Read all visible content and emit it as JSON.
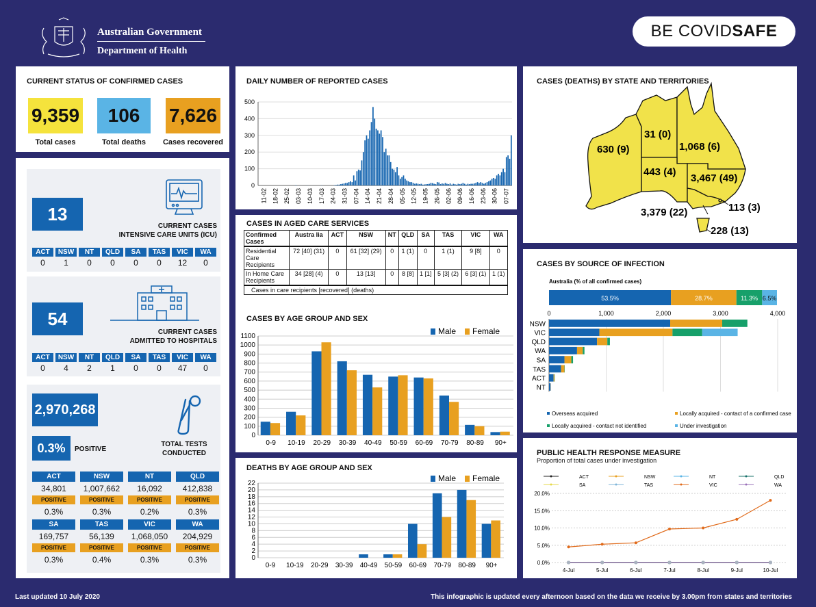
{
  "header": {
    "gov_line1": "Australian Government",
    "gov_line2": "Department of Health",
    "brand": "BE COVIDSAFE",
    "brand_a": "BE COVID",
    "brand_b": "SAFE"
  },
  "status": {
    "title": "CURRENT STATUS OF CONFIRMED CASES",
    "total": "9,359",
    "total_label": "Total cases",
    "deaths": "106",
    "deaths_label": "Total deaths",
    "recovered": "7,626",
    "recovered_label": "Cases recovered",
    "colors": {
      "total": "#f5e33c",
      "deaths": "#5ab4e5",
      "recovered": "#e8a020"
    }
  },
  "icu": {
    "value": "13",
    "label1": "CURRENT CASES",
    "label2": "INTENSIVE CARE UNITS (ICU)",
    "states": [
      {
        "s": "ACT",
        "v": "0"
      },
      {
        "s": "NSW",
        "v": "1"
      },
      {
        "s": "NT",
        "v": "0"
      },
      {
        "s": "QLD",
        "v": "0"
      },
      {
        "s": "SA",
        "v": "0"
      },
      {
        "s": "TAS",
        "v": "0"
      },
      {
        "s": "VIC",
        "v": "12"
      },
      {
        "s": "WA",
        "v": "0"
      }
    ]
  },
  "hosp": {
    "value": "54",
    "label1": "CURRENT CASES",
    "label2": "ADMITTED TO HOSPITALS",
    "states": [
      {
        "s": "ACT",
        "v": "0"
      },
      {
        "s": "NSW",
        "v": "4"
      },
      {
        "s": "NT",
        "v": "2"
      },
      {
        "s": "QLD",
        "v": "1"
      },
      {
        "s": "SA",
        "v": "0"
      },
      {
        "s": "TAS",
        "v": "0"
      },
      {
        "s": "VIC",
        "v": "47"
      },
      {
        "s": "WA",
        "v": "0"
      }
    ]
  },
  "tests": {
    "value": "2,970,268",
    "positive": "0.3%",
    "positive_label": "POSITIVE",
    "label1": "TOTAL TESTS",
    "label2": "CONDUCTED",
    "pos_word": "POSITIVE",
    "states": [
      {
        "s": "ACT",
        "n": "34,801",
        "p": "0.3%"
      },
      {
        "s": "NSW",
        "n": "1,007,662",
        "p": "0.3%"
      },
      {
        "s": "NT",
        "n": "16,092",
        "p": "0.2%"
      },
      {
        "s": "QLD",
        "n": "412,838",
        "p": "0.3%"
      },
      {
        "s": "SA",
        "n": "169,757",
        "p": "0.3%"
      },
      {
        "s": "TAS",
        "n": "56,139",
        "p": "0.4%"
      },
      {
        "s": "VIC",
        "n": "1,068,050",
        "p": "0.3%"
      },
      {
        "s": "WA",
        "n": "204,929",
        "p": "0.3%"
      }
    ]
  },
  "daily": {
    "title": "DAILY NUMBER OF REPORTED CASES"
  },
  "aged": {
    "title": "CASES IN AGED CARE SERVICES",
    "headers": [
      "Confirmed Cases",
      "Austra lia",
      "ACT",
      "NSW",
      "NT",
      "QLD",
      "SA",
      "TAS",
      "VIC",
      "WA"
    ],
    "rows": [
      [
        "Residential Care Recipients",
        "72 [40] (31)",
        "0",
        "61 [32] (29)",
        "0",
        "1 (1)",
        "0",
        "1 (1)",
        "9 [8]",
        "0"
      ],
      [
        "In Home Care Recipients",
        "34 [28] (4)",
        "0",
        "13 [13]",
        "0",
        "8 [8]",
        "1 [1]",
        "5 [3] (2)",
        "6 [3] (1)",
        "1 (1)"
      ]
    ],
    "footnote": "Cases in care recipients [recovered] (deaths)"
  },
  "age_cases": {
    "title": "CASES BY AGE GROUP AND SEX"
  },
  "age_deaths": {
    "title": "DEATHS BY AGE GROUP AND SEX"
  },
  "map": {
    "title": "CASES (DEATHS) BY STATE AND TERRITORIES",
    "labels": {
      "wa": "630 (9)",
      "nt": "31 (0)",
      "qld": "1,068 (6)",
      "sa": "443 (4)",
      "nsw": "3,467 (49)",
      "vic": "3,379 (22)",
      "act": "113 (3)",
      "tas": "228 (13)"
    }
  },
  "source": {
    "title": "CASES BY SOURCE OF INFECTION"
  },
  "phrm": {
    "title": "PUBLIC HEALTH RESPONSE MEASURE",
    "subtitle": "Proportion of total cases under investigation"
  },
  "footer": {
    "updated": "Last updated 10 July 2020",
    "note": "This infographic is updated every afternoon based on the data we receive by 3.00pm from states and territories"
  },
  "chart_data": [
    {
      "type": "bar",
      "id": "daily",
      "title": "DAILY NUMBER OF REPORTED CASES",
      "ylim": [
        0,
        500
      ],
      "yticks": [
        0,
        100,
        200,
        300,
        400,
        500
      ],
      "xticklabels": [
        "11-02",
        "18-02",
        "25-02",
        "03-03",
        "10-03",
        "17-03",
        "24-03",
        "31-03",
        "07-04",
        "14-04",
        "21-04",
        "28-04",
        "05-05",
        "12-05",
        "19-05",
        "26-05",
        "02-06",
        "09-06",
        "16-06",
        "23-06",
        "30-06",
        "07-07"
      ],
      "values": [
        0,
        0,
        0,
        0,
        0,
        0,
        0,
        0,
        0,
        0,
        0,
        0,
        0,
        0,
        0,
        0,
        0,
        0,
        0,
        0,
        0,
        0,
        0,
        2,
        0,
        0,
        0,
        0,
        0,
        0,
        1,
        0,
        0,
        0,
        0,
        0,
        0,
        0,
        0,
        1,
        0,
        0,
        0,
        0,
        0,
        0,
        0,
        2,
        3,
        5,
        5,
        8,
        10,
        12,
        15,
        15,
        20,
        25,
        20,
        60,
        30,
        85,
        95,
        90,
        150,
        200,
        270,
        300,
        280,
        330,
        380,
        470,
        400,
        340,
        330,
        310,
        330,
        290,
        200,
        220,
        180,
        180,
        140,
        100,
        95,
        80,
        110,
        60,
        40,
        50,
        60,
        40,
        30,
        25,
        20,
        20,
        15,
        10,
        12,
        10,
        8,
        10,
        5,
        6,
        8,
        8,
        10,
        15,
        14,
        10,
        8,
        20,
        18,
        8,
        12,
        10,
        15,
        10,
        8,
        12,
        5,
        10,
        8,
        5,
        10,
        8,
        10,
        15,
        10,
        5,
        10,
        8,
        10,
        10,
        12,
        15,
        20,
        15,
        20,
        15,
        10,
        15,
        20,
        25,
        30,
        40,
        45,
        40,
        60,
        70,
        60,
        80,
        100,
        80,
        170,
        180,
        160,
        300
      ],
      "color": "#1565b0"
    },
    {
      "type": "bar",
      "id": "age_cases",
      "title": "CASES BY AGE GROUP AND SEX",
      "categories": [
        "0-9",
        "10-19",
        "20-29",
        "30-39",
        "40-49",
        "50-59",
        "60-69",
        "70-79",
        "80-89",
        "90+"
      ],
      "ylim": [
        0,
        1100
      ],
      "yticks": [
        0,
        100,
        200,
        300,
        400,
        500,
        600,
        700,
        800,
        900,
        1000,
        1100
      ],
      "series": [
        {
          "name": "Male",
          "values": [
            150,
            260,
            930,
            820,
            670,
            650,
            640,
            440,
            115,
            35
          ],
          "color": "#1565b0"
        },
        {
          "name": "Female",
          "values": [
            135,
            220,
            1030,
            720,
            530,
            665,
            630,
            370,
            100,
            40
          ],
          "color": "#e8a020"
        }
      ]
    },
    {
      "type": "bar",
      "id": "age_deaths",
      "title": "DEATHS BY AGE GROUP AND SEX",
      "categories": [
        "0-9",
        "10-19",
        "20-29",
        "30-39",
        "40-49",
        "50-59",
        "60-69",
        "70-79",
        "80-89",
        "90+"
      ],
      "ylim": [
        0,
        22
      ],
      "yticks": [
        0,
        2,
        4,
        6,
        8,
        10,
        12,
        14,
        16,
        18,
        20,
        22
      ],
      "series": [
        {
          "name": "Male",
          "values": [
            0,
            0,
            0,
            0,
            1,
            1,
            10,
            19,
            20,
            10
          ],
          "color": "#1565b0"
        },
        {
          "name": "Female",
          "values": [
            0,
            0,
            0,
            0,
            0,
            1,
            4,
            12,
            17,
            11
          ],
          "color": "#e8a020"
        }
      ]
    },
    {
      "type": "bar",
      "id": "source_aus",
      "title": "Australia (% of all confirmed cases)",
      "orientation": "horizontal",
      "stacked": true,
      "segments": [
        {
          "name": "Overseas acquired",
          "value": 53.5,
          "label": "53.5%",
          "color": "#1565b0"
        },
        {
          "name": "Locally acquired - contact of a confirmed case",
          "value": 28.7,
          "label": "28.7%",
          "color": "#e8a020"
        },
        {
          "name": "Locally acquired - contact not identified",
          "value": 11.3,
          "label": "11.3%",
          "color": "#17a06a"
        },
        {
          "name": "Under investigation",
          "value": 6.5,
          "label": "6.5%",
          "color": "#5ab4e5"
        }
      ]
    },
    {
      "type": "bar",
      "id": "source_states",
      "orientation": "horizontal",
      "stacked": true,
      "xlim": [
        0,
        4000
      ],
      "xticks": [
        0,
        1000,
        2000,
        3000,
        4000
      ],
      "xticklabels": [
        "0",
        "1,000",
        "2,000",
        "3,000",
        "4,000"
      ],
      "categories": [
        "NSW",
        "VIC",
        "QLD",
        "WA",
        "SA",
        "TAS",
        "ACT",
        "NT"
      ],
      "series": [
        {
          "name": "Overseas acquired",
          "values": [
            2120,
            880,
            840,
            490,
            270,
            210,
            80,
            28
          ],
          "color": "#1565b0"
        },
        {
          "name": "Locally acquired - contact of a confirmed case",
          "values": [
            910,
            1280,
            180,
            100,
            120,
            60,
            15,
            3
          ],
          "color": "#e8a020"
        },
        {
          "name": "Locally acquired - contact not identified",
          "values": [
            440,
            520,
            45,
            30,
            30,
            5,
            5,
            0
          ],
          "color": "#17a06a"
        },
        {
          "name": "Under investigation",
          "values": [
            0,
            620,
            0,
            0,
            0,
            0,
            0,
            0
          ],
          "color": "#5ab4e5"
        }
      ]
    },
    {
      "type": "line",
      "id": "phrm",
      "title": "PUBLIC HEALTH RESPONSE MEASURE",
      "x": [
        "4-Jul",
        "5-Jul",
        "6-Jul",
        "7-Jul",
        "8-Jul",
        "9-Jul",
        "10-Jul"
      ],
      "ylim": [
        0,
        20
      ],
      "yticks": [
        "0.0%",
        "5.0%",
        "10.0%",
        "15.0%",
        "20.0%"
      ],
      "series": [
        {
          "name": "ACT",
          "values": [
            0,
            0,
            0,
            0,
            0,
            0,
            0
          ],
          "color": "#222222"
        },
        {
          "name": "NSW",
          "values": [
            0,
            0,
            0,
            0,
            0,
            0,
            0
          ],
          "color": "#e8a020"
        },
        {
          "name": "NT",
          "values": [
            0,
            0,
            0,
            0,
            0,
            0,
            0
          ],
          "color": "#5ab4e5"
        },
        {
          "name": "QLD",
          "values": [
            0,
            0,
            0,
            0,
            0,
            0,
            0
          ],
          "color": "#17706a"
        },
        {
          "name": "SA",
          "values": [
            0,
            0,
            0,
            0,
            0,
            0,
            0
          ],
          "color": "#e6d84a"
        },
        {
          "name": "TAS",
          "values": [
            0,
            0,
            0,
            0,
            0,
            0,
            0
          ],
          "color": "#7fb6d8"
        },
        {
          "name": "VIC",
          "values": [
            4.5,
            5.3,
            5.7,
            9.7,
            10.0,
            12.5,
            18.0
          ],
          "color": "#e06a1a"
        },
        {
          "name": "WA",
          "values": [
            0,
            0,
            0,
            0,
            0,
            0,
            0
          ],
          "color": "#9a70b8"
        }
      ]
    }
  ]
}
